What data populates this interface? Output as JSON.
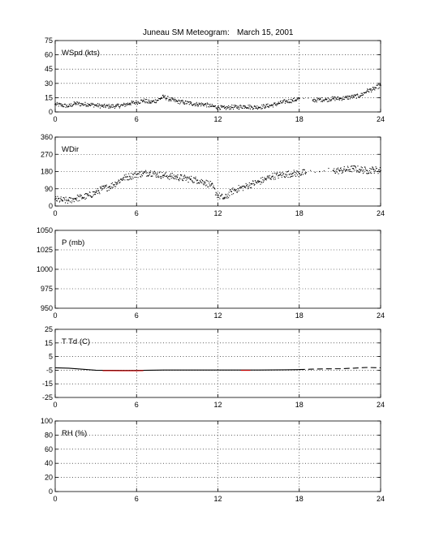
{
  "figure": {
    "title_left": "Juneau SM Meteogram:",
    "title_right": "March 15, 2001"
  },
  "chart_data": [
    {
      "type": "scatter",
      "label": "WSpd (kts)",
      "xlim": [
        0,
        24
      ],
      "xticks": [
        0,
        6,
        12,
        18,
        24
      ],
      "ylim": [
        0,
        75
      ],
      "yticks": [
        0,
        15,
        30,
        45,
        60,
        75
      ],
      "grid": true,
      "series": [
        {
          "color": "#000000",
          "marker": "dot",
          "x": [
            0.0,
            0.5,
            1.0,
            1.5,
            2.0,
            2.5,
            3.0,
            3.5,
            4.0,
            4.5,
            5.0,
            5.5,
            6.0,
            6.5,
            7.0,
            7.5,
            8.0,
            8.5,
            9.0,
            9.5,
            10.0,
            10.5,
            11.0,
            11.5,
            12.0,
            12.5,
            13.0,
            13.5,
            14.0,
            14.5,
            15.0,
            15.5,
            16.0,
            16.5,
            17.0,
            17.5,
            18.0,
            19.0,
            19.5,
            20.0,
            20.5,
            21.0,
            21.5,
            22.0,
            22.5,
            23.0,
            23.5,
            24.0
          ],
          "y": [
            8,
            7,
            6,
            9,
            8,
            8,
            7,
            6,
            6,
            6,
            7,
            9,
            10,
            12,
            10,
            12,
            16,
            13,
            11,
            10,
            9,
            8,
            8,
            6,
            5,
            4,
            5,
            5,
            6,
            5,
            5,
            6,
            7,
            9,
            11,
            12,
            14,
            12,
            13,
            13,
            14,
            14,
            15,
            16,
            17,
            22,
            24,
            28
          ]
        }
      ]
    },
    {
      "type": "scatter",
      "label": "WDir",
      "xlim": [
        0,
        24
      ],
      "xticks": [
        0,
        6,
        12,
        18,
        24
      ],
      "ylim": [
        0,
        360
      ],
      "yticks": [
        0,
        90,
        180,
        270,
        360
      ],
      "grid": true,
      "series": [
        {
          "color": "#000000",
          "marker": "dot",
          "x": [
            0.0,
            0.5,
            1.0,
            1.5,
            2.0,
            2.5,
            3.0,
            3.5,
            4.0,
            4.5,
            5.0,
            5.5,
            6.0,
            6.5,
            7.0,
            7.5,
            8.0,
            8.5,
            9.0,
            9.5,
            10.0,
            10.5,
            11.0,
            11.5,
            12.0,
            12.5,
            13.0,
            13.5,
            14.0,
            14.5,
            15.0,
            15.5,
            16.0,
            16.5,
            17.0,
            17.5,
            18.0,
            18.5,
            19.5,
            20.5,
            21.0,
            21.5,
            22.0,
            22.5,
            23.0,
            23.5,
            24.0
          ],
          "y": [
            35,
            30,
            28,
            40,
            45,
            55,
            70,
            90,
            100,
            120,
            145,
            155,
            165,
            170,
            175,
            165,
            160,
            155,
            150,
            145,
            140,
            135,
            125,
            110,
            55,
            40,
            75,
            90,
            100,
            115,
            125,
            140,
            155,
            160,
            165,
            170,
            170,
            175,
            180,
            185,
            185,
            190,
            195,
            190,
            185,
            190,
            185
          ]
        }
      ]
    },
    {
      "type": "line",
      "label": "P (mb)",
      "xlim": [
        0,
        24
      ],
      "xticks": [
        0,
        6,
        12,
        18,
        24
      ],
      "ylim": [
        950,
        1050
      ],
      "yticks": [
        950,
        975,
        1000,
        1025,
        1050
      ],
      "grid": true,
      "series": []
    },
    {
      "type": "line",
      "label": "T Td (C)",
      "xlim": [
        0,
        24
      ],
      "xticks": [
        0,
        6,
        12,
        18,
        24
      ],
      "ylim": [
        -25,
        25
      ],
      "yticks": [
        -25,
        -15,
        -5,
        5,
        15,
        25
      ],
      "grid": true,
      "series": [
        {
          "color": "#000000",
          "style": "solid",
          "x": [
            0,
            1,
            2,
            3,
            4,
            5,
            6,
            7,
            8,
            9,
            10,
            11,
            12,
            13,
            14,
            15,
            16,
            17,
            18
          ],
          "y": [
            -3.2,
            -3.5,
            -4.3,
            -5.0,
            -5.1,
            -5.2,
            -5.2,
            -5.0,
            -4.9,
            -4.9,
            -4.9,
            -4.9,
            -4.9,
            -4.9,
            -4.9,
            -4.9,
            -4.8,
            -4.7,
            -4.6
          ]
        },
        {
          "color": "#000000",
          "style": "dashed",
          "x": [
            18,
            19,
            20,
            21,
            22,
            23,
            24
          ],
          "y": [
            -4.5,
            -4.2,
            -4.0,
            -3.9,
            -3.5,
            -3.0,
            -3.3
          ]
        },
        {
          "color": "#cc0000",
          "style": "solid",
          "x": [
            3.5,
            4,
            5,
            6,
            6.5
          ],
          "y": [
            -5.3,
            -5.3,
            -5.4,
            -5.4,
            -5.3
          ]
        },
        {
          "color": "#cc0000",
          "style": "solid",
          "x": [
            13.7,
            14.0,
            14.4
          ],
          "y": [
            -5.1,
            -5.1,
            -5.1
          ]
        }
      ]
    },
    {
      "type": "line",
      "label": "RH (%)",
      "xlim": [
        0,
        24
      ],
      "xticks": [
        0,
        6,
        12,
        18,
        24
      ],
      "ylim": [
        0,
        100
      ],
      "yticks": [
        0,
        20,
        40,
        60,
        80,
        100
      ],
      "grid": true,
      "series": []
    }
  ]
}
